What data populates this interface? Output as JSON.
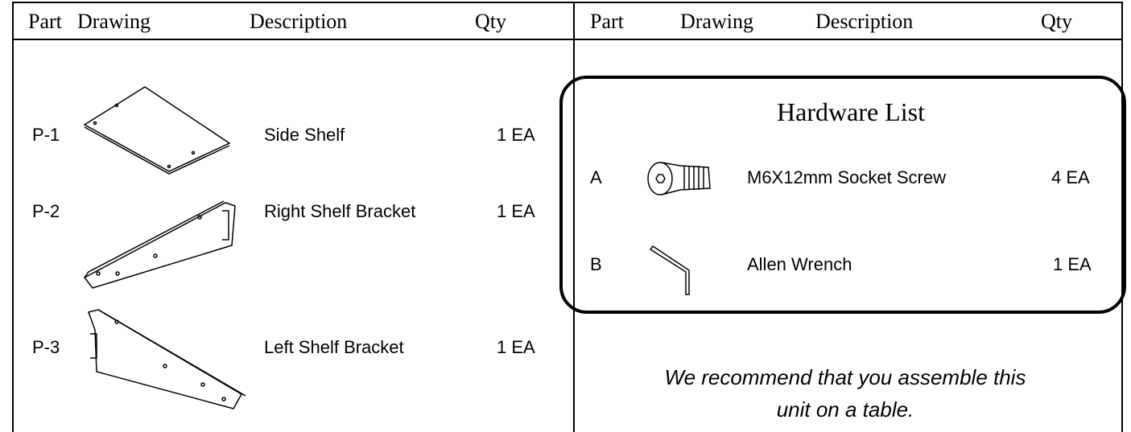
{
  "left_table": {
    "headers": [
      "Part",
      "Drawing",
      "Description",
      "Qty"
    ],
    "rows": [
      [
        "P-1",
        "Side Shelf",
        "1 EA"
      ],
      [
        "P-2",
        "Right Shelf Bracket",
        "1 EA"
      ],
      [
        "P-3",
        "Left Shelf Bracket",
        "1 EA"
      ]
    ]
  },
  "right_table": {
    "headers": [
      "Part",
      "Drawing",
      "Description",
      "Qty"
    ]
  },
  "hardware_list": {
    "title": "Hardware List",
    "rows": [
      [
        "A",
        "M6X12mm Socket Screw",
        "4 EA"
      ],
      [
        "B",
        "Allen Wrench",
        "1 EA"
      ]
    ]
  },
  "note": {
    "lines": [
      "We recommend that you assemble this",
      "unit on a table."
    ]
  }
}
